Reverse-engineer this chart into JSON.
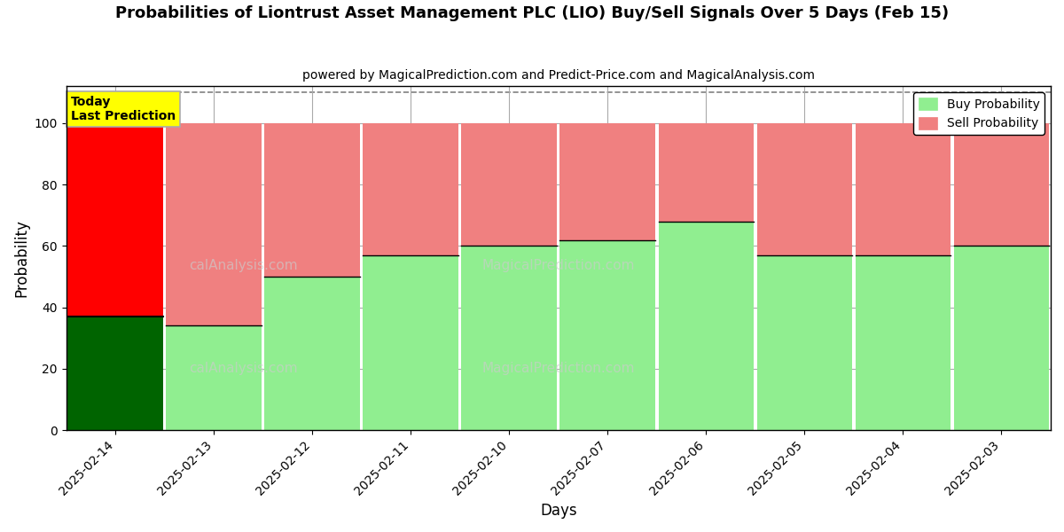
{
  "title": "Probabilities of Liontrust Asset Management PLC (LIO) Buy/Sell Signals Over 5 Days (Feb 15)",
  "subtitle": "powered by MagicalPrediction.com and Predict-Price.com and MagicalAnalysis.com",
  "xlabel": "Days",
  "ylabel": "Probability",
  "categories": [
    "2025-02-14",
    "2025-02-13",
    "2025-02-12",
    "2025-02-11",
    "2025-02-10",
    "2025-02-07",
    "2025-02-06",
    "2025-02-05",
    "2025-02-04",
    "2025-02-03"
  ],
  "buy_values": [
    37,
    34,
    50,
    57,
    60,
    62,
    68,
    57,
    57,
    60
  ],
  "sell_values": [
    63,
    66,
    50,
    43,
    40,
    38,
    32,
    43,
    43,
    40
  ],
  "today_buy_color": "#006400",
  "today_sell_color": "#ff0000",
  "buy_color": "#90EE90",
  "sell_color": "#F08080",
  "today_label": "Today\nLast Prediction",
  "legend_buy": "Buy Probability",
  "legend_sell": "Sell Probability",
  "ylim": [
    0,
    112
  ],
  "yticks": [
    0,
    20,
    40,
    60,
    80,
    100
  ],
  "dashed_line_y": 110,
  "background_color": "#ffffff",
  "grid_color": "#aaaaaa",
  "bar_width": 0.97
}
